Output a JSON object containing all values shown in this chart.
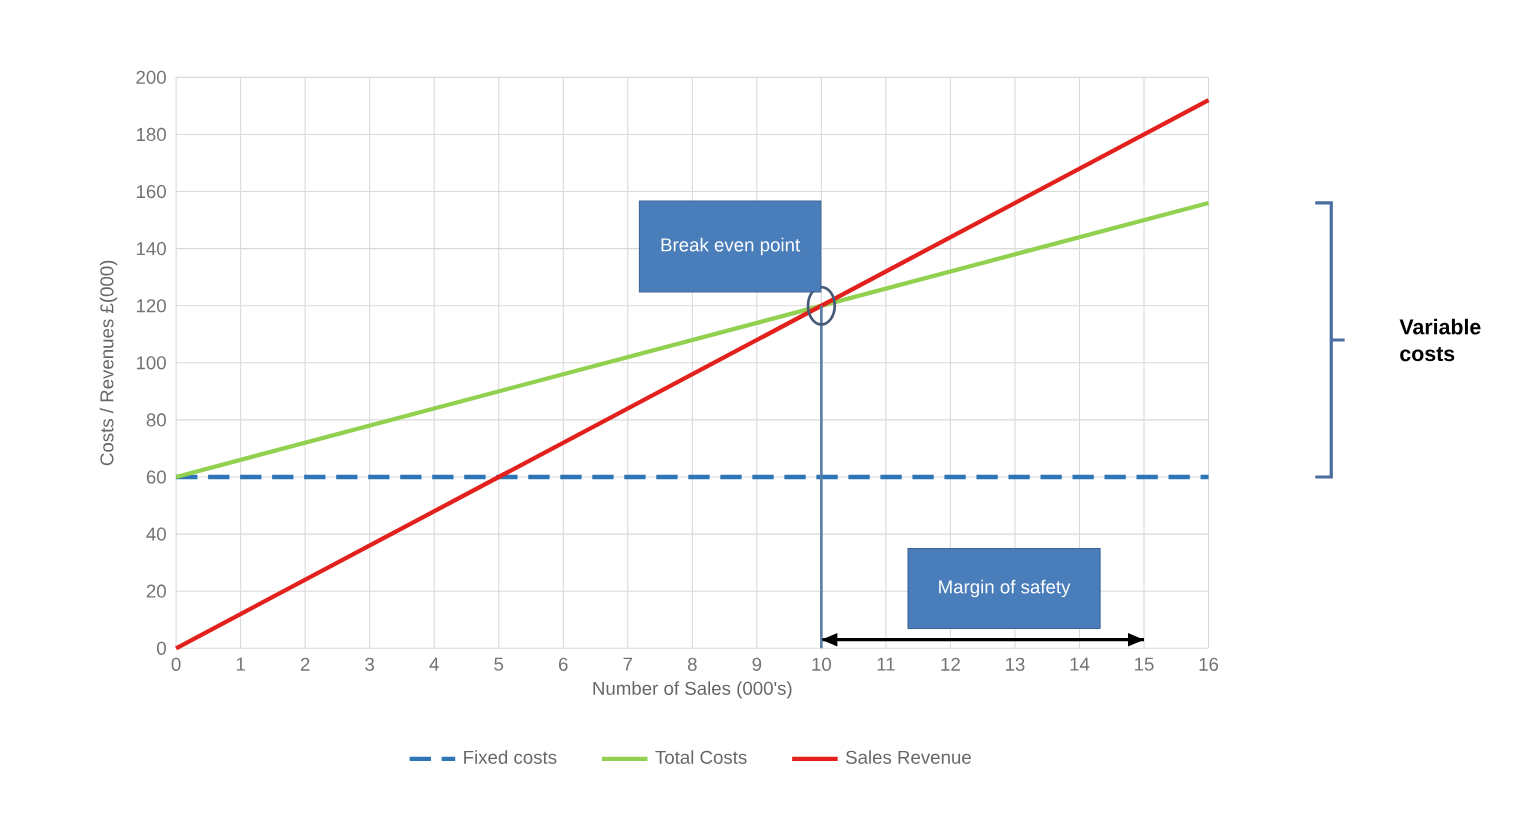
{
  "chart_data": {
    "type": "line",
    "xlabel": "Number of Sales (000's)",
    "ylabel": "Costs / Revenues £(000)",
    "xlim": [
      0,
      16
    ],
    "xticks": [
      0,
      1,
      2,
      3,
      4,
      5,
      6,
      7,
      8,
      9,
      10,
      11,
      12,
      13,
      14,
      15,
      16
    ],
    "ylim": [
      0,
      200
    ],
    "yticks": [
      0,
      20,
      40,
      60,
      80,
      100,
      120,
      140,
      160,
      180,
      200
    ],
    "grid": true,
    "legend": "bottom",
    "marker": "none",
    "series": [
      {
        "name": "Fixed costs",
        "color": "#2e75b6",
        "line_style": "dashed",
        "x": [
          0,
          16
        ],
        "values": [
          60,
          60
        ]
      },
      {
        "name": "Total Costs",
        "color": "#92d050",
        "x": [
          0,
          16
        ],
        "values": [
          60,
          156
        ]
      },
      {
        "name": "Sales Revenue",
        "color": "#e3211c",
        "x": [
          0,
          16
        ],
        "values": [
          0,
          192
        ]
      },
      {
        "color": "#000000",
        "x": [
          10,
          15
        ],
        "values": [
          3,
          3
        ]
      }
    ],
    "ref_lines": [
      {
        "axis": "x",
        "value": 10,
        "label": "Break even point",
        "color": "#5b7fa6"
      }
    ],
    "annotations": [
      "Variable costs",
      {
        "text": "Margin of safety",
        "x": 12.5,
        "y": 3
      }
    ]
  }
}
